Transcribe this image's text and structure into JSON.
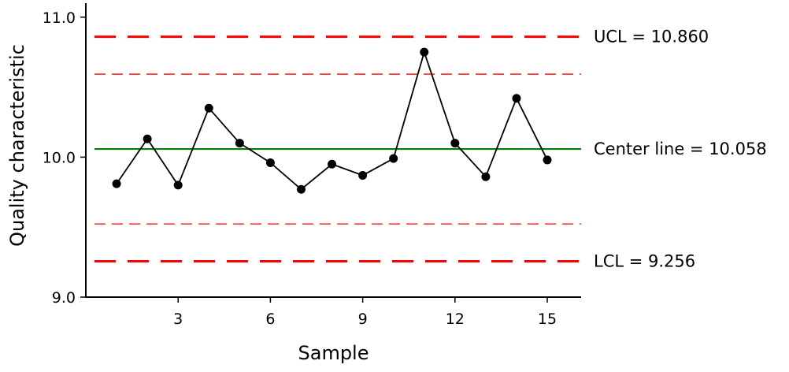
{
  "chart_data": {
    "type": "line",
    "title": "",
    "xlabel": "Sample",
    "ylabel": "Quality characteristic",
    "xlim": [
      0,
      16.1
    ],
    "ylim": [
      9.0,
      11.1
    ],
    "xticks": [
      3,
      6,
      9,
      12,
      15
    ],
    "xtick_labels": [
      "3",
      "6",
      "9",
      "12",
      "15"
    ],
    "yticks": [
      9.0,
      10.0,
      11.0
    ],
    "ytick_labels": [
      "9.0",
      "10.0",
      "11.0"
    ],
    "grid": false,
    "series": [
      {
        "x": [
          1,
          2,
          3,
          4,
          5,
          6,
          7,
          8,
          9,
          10,
          11,
          12,
          13,
          14,
          15
        ],
        "y": [
          9.81,
          10.13,
          9.8,
          10.35,
          10.1,
          9.96,
          9.77,
          9.95,
          9.87,
          9.99,
          10.75,
          10.1,
          9.86,
          10.42,
          9.98
        ],
        "color": "#000000"
      }
    ],
    "lines": [
      {
        "y": 10.86,
        "label": "UCL = 10.860",
        "color": "#ff0000",
        "style": "long-dash"
      },
      {
        "y": 10.593,
        "label": "",
        "color": "#ff0000",
        "style": "thin-dash"
      },
      {
        "y": 10.058,
        "label": "Center line = 10.058",
        "color": "#008000",
        "style": "solid"
      },
      {
        "y": 9.523,
        "label": "",
        "color": "#ff0000",
        "style": "thin-dash"
      },
      {
        "y": 9.256,
        "label": "LCL = 9.256",
        "color": "#ff0000",
        "style": "long-dash"
      }
    ]
  }
}
